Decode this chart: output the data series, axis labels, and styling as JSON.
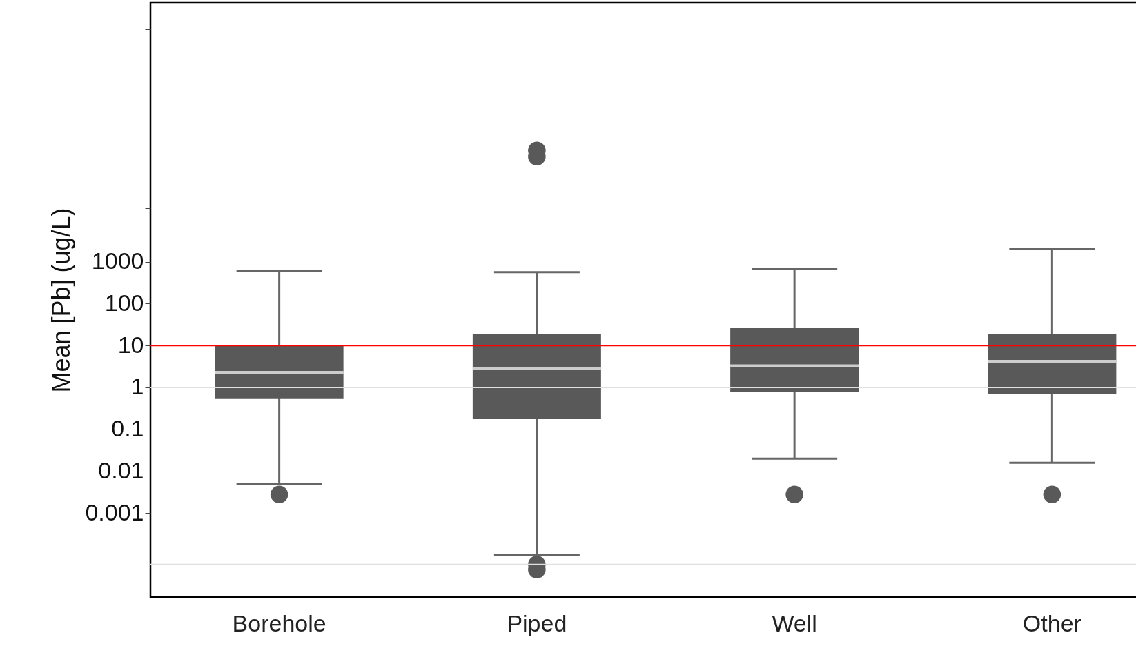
{
  "chart_data": {
    "type": "box",
    "ylabel": "Mean [Pb] (ug/L)",
    "log": true,
    "categories": [
      "Borehole",
      "Piped",
      "Well",
      "Other"
    ],
    "color": "#595959",
    "boxes": [
      {
        "low": 0.005,
        "q1": 0.55,
        "median": 2.3,
        "q3": 10,
        "high": 600,
        "outliers": [
          0.0028
        ]
      },
      {
        "low": 0.0001,
        "q1": 0.18,
        "median": 2.8,
        "q3": 19,
        "high": 560,
        "outliers": [
          450000,
          320000,
          6e-05,
          4.5e-05
        ]
      },
      {
        "low": 0.02,
        "q1": 0.77,
        "median": 3.3,
        "q3": 26,
        "high": 660,
        "outliers": [
          0.0028
        ]
      },
      {
        "low": 0.016,
        "q1": 0.7,
        "median": 4.2,
        "q3": 18.6,
        "high": 2000,
        "outliers": [
          0.0028
        ]
      }
    ],
    "ylim": [
      1e-05,
      1500000000
    ],
    "yticks": [
      {
        "value": 6e-05,
        "label": null
      },
      0.001,
      0.01,
      0.1,
      1,
      10,
      100,
      1000,
      {
        "value": 19000,
        "label": null
      },
      {
        "value": 350000000,
        "label": null
      }
    ],
    "ref_lines": [
      {
        "axis": "y",
        "value": 1,
        "color": "#e0e0e0"
      },
      {
        "axis": "y",
        "value": 6e-05,
        "color": "#e0e0e0"
      },
      {
        "axis": "y",
        "value": 10,
        "color": "#ff0000"
      }
    ]
  }
}
